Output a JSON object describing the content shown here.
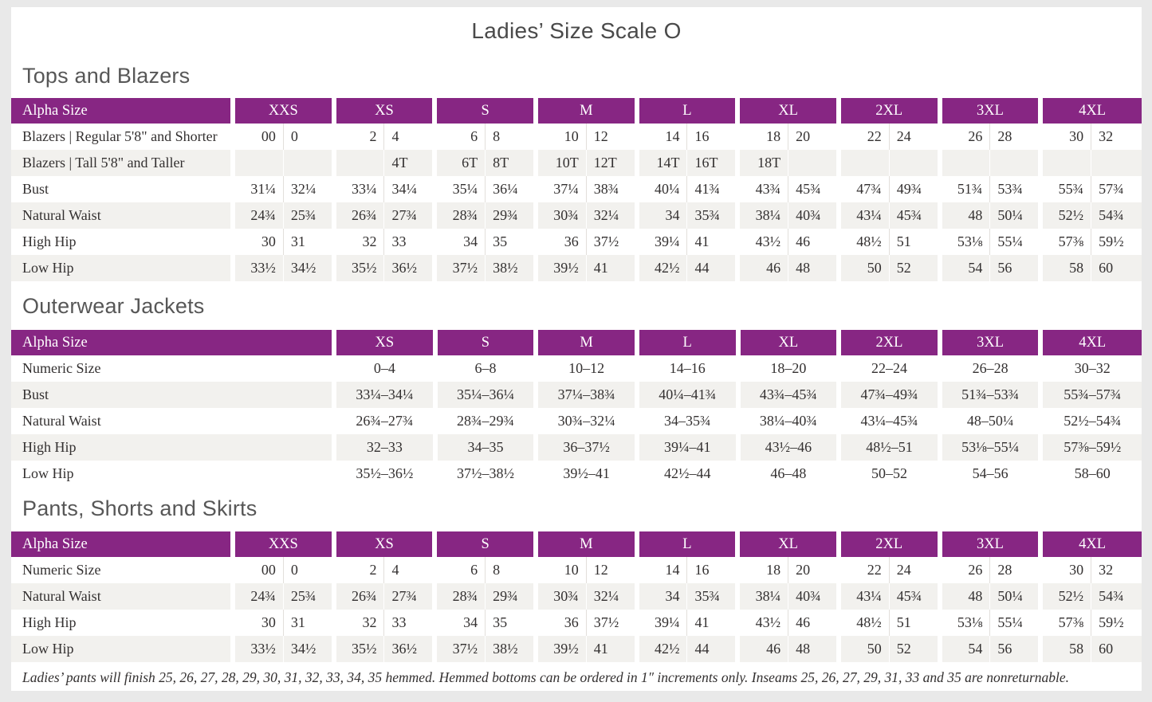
{
  "page_title": "Ladies’ Size Scale O",
  "footnote": "Ladies’ pants will finish 25, 26, 27, 28, 29, 30, 31, 32, 33, 34, 35 hemmed. Hemmed bottoms can be ordered in 1″ increments only. Inseams 25, 26, 27, 29, 31, 33 and 35 are nonreturnable.",
  "colors": {
    "header_bg": "#872683",
    "header_text": "#ffffff",
    "row_alt_bg": "#f2f1ee",
    "body_text": "#333030",
    "heading_text": "#575757",
    "page_bg": "#ffffff",
    "frame_bg": "#e9e9e9"
  },
  "sections": [
    {
      "title": "Tops and Blazers",
      "layout": "paired",
      "col_header_label": "Alpha Size",
      "col_groups": [
        "XXS",
        "XS",
        "S",
        "M",
        "L",
        "XL",
        "2XL",
        "3XL",
        "4XL"
      ],
      "rows": [
        {
          "label": "Blazers | Regular 5'8\" and Shorter",
          "pairs": [
            [
              "00",
              "0"
            ],
            [
              "2",
              "4"
            ],
            [
              "6",
              "8"
            ],
            [
              "10",
              "12"
            ],
            [
              "14",
              "16"
            ],
            [
              "18",
              "20"
            ],
            [
              "22",
              "24"
            ],
            [
              "26",
              "28"
            ],
            [
              "30",
              "32"
            ]
          ]
        },
        {
          "label": "Blazers | Tall 5'8\" and Taller",
          "pairs": [
            [
              "",
              ""
            ],
            [
              "",
              "4T"
            ],
            [
              "6T",
              "8T"
            ],
            [
              "10T",
              "12T"
            ],
            [
              "14T",
              "16T"
            ],
            [
              "18T",
              ""
            ],
            [
              "",
              ""
            ],
            [
              "",
              ""
            ],
            [
              "",
              ""
            ]
          ]
        },
        {
          "label": "Bust",
          "pairs": [
            [
              "31¼",
              "32¼"
            ],
            [
              "33¼",
              "34¼"
            ],
            [
              "35¼",
              "36¼"
            ],
            [
              "37¼",
              "38¾"
            ],
            [
              "40¼",
              "41¾"
            ],
            [
              "43¾",
              "45¾"
            ],
            [
              "47¾",
              "49¾"
            ],
            [
              "51¾",
              "53¾"
            ],
            [
              "55¾",
              "57¾"
            ]
          ]
        },
        {
          "label": "Natural Waist",
          "pairs": [
            [
              "24¾",
              "25¾"
            ],
            [
              "26¾",
              "27¾"
            ],
            [
              "28¾",
              "29¾"
            ],
            [
              "30¾",
              "32¼"
            ],
            [
              "34",
              "35¾"
            ],
            [
              "38¼",
              "40¾"
            ],
            [
              "43¼",
              "45¾"
            ],
            [
              "48",
              "50¼"
            ],
            [
              "52½",
              "54¾"
            ]
          ]
        },
        {
          "label": "High Hip",
          "pairs": [
            [
              "30",
              "31"
            ],
            [
              "32",
              "33"
            ],
            [
              "34",
              "35"
            ],
            [
              "36",
              "37½"
            ],
            [
              "39¼",
              "41"
            ],
            [
              "43½",
              "46"
            ],
            [
              "48½",
              "51"
            ],
            [
              "53⅛",
              "55¼"
            ],
            [
              "57⅜",
              "59½"
            ]
          ]
        },
        {
          "label": "Low Hip",
          "pairs": [
            [
              "33½",
              "34½"
            ],
            [
              "35½",
              "36½"
            ],
            [
              "37½",
              "38½"
            ],
            [
              "39½",
              "41"
            ],
            [
              "42½",
              "44"
            ],
            [
              "46",
              "48"
            ],
            [
              "50",
              "52"
            ],
            [
              "54",
              "56"
            ],
            [
              "58",
              "60"
            ]
          ]
        }
      ]
    },
    {
      "title": "Outerwear Jackets",
      "layout": "single",
      "col_header_label": "Alpha Size",
      "col_groups": [
        "XS",
        "S",
        "M",
        "L",
        "XL",
        "2XL",
        "3XL",
        "4XL"
      ],
      "rows": [
        {
          "label": "Numeric Size",
          "values": [
            "0–4",
            "6–8",
            "10–12",
            "14–16",
            "18–20",
            "22–24",
            "26–28",
            "30–32"
          ]
        },
        {
          "label": "Bust",
          "values": [
            "33¼–34¼",
            "35¼–36¼",
            "37¼–38¾",
            "40¼–41¾",
            "43¾–45¾",
            "47¾–49¾",
            "51¾–53¾",
            "55¾–57¾"
          ]
        },
        {
          "label": "Natural Waist",
          "values": [
            "26¾–27¾",
            "28¾–29¾",
            "30¾–32¼",
            "34–35¾",
            "38¼–40¾",
            "43¼–45¾",
            "48–50¼",
            "52½–54¾"
          ]
        },
        {
          "label": "High Hip",
          "values": [
            "32–33",
            "34–35",
            "36–37½",
            "39¼–41",
            "43½–46",
            "48½–51",
            "53⅛–55¼",
            "57⅜–59½"
          ]
        },
        {
          "label": "Low Hip",
          "values": [
            "35½–36½",
            "37½–38½",
            "39½–41",
            "42½–44",
            "46–48",
            "50–52",
            "54–56",
            "58–60"
          ]
        }
      ]
    },
    {
      "title": "Pants, Shorts and Skirts",
      "layout": "paired",
      "col_header_label": "Alpha Size",
      "col_groups": [
        "XXS",
        "XS",
        "S",
        "M",
        "L",
        "XL",
        "2XL",
        "3XL",
        "4XL"
      ],
      "rows": [
        {
          "label": "Numeric Size",
          "pairs": [
            [
              "00",
              "0"
            ],
            [
              "2",
              "4"
            ],
            [
              "6",
              "8"
            ],
            [
              "10",
              "12"
            ],
            [
              "14",
              "16"
            ],
            [
              "18",
              "20"
            ],
            [
              "22",
              "24"
            ],
            [
              "26",
              "28"
            ],
            [
              "30",
              "32"
            ]
          ]
        },
        {
          "label": "Natural Waist",
          "pairs": [
            [
              "24¾",
              "25¾"
            ],
            [
              "26¾",
              "27¾"
            ],
            [
              "28¾",
              "29¾"
            ],
            [
              "30¾",
              "32¼"
            ],
            [
              "34",
              "35¾"
            ],
            [
              "38¼",
              "40¾"
            ],
            [
              "43¼",
              "45¾"
            ],
            [
              "48",
              "50¼"
            ],
            [
              "52½",
              "54¾"
            ]
          ]
        },
        {
          "label": "High Hip",
          "pairs": [
            [
              "30",
              "31"
            ],
            [
              "32",
              "33"
            ],
            [
              "34",
              "35"
            ],
            [
              "36",
              "37½"
            ],
            [
              "39¼",
              "41"
            ],
            [
              "43½",
              "46"
            ],
            [
              "48½",
              "51"
            ],
            [
              "53⅛",
              "55¼"
            ],
            [
              "57⅜",
              "59½"
            ]
          ]
        },
        {
          "label": "Low Hip",
          "pairs": [
            [
              "33½",
              "34½"
            ],
            [
              "35½",
              "36½"
            ],
            [
              "37½",
              "38½"
            ],
            [
              "39½",
              "41"
            ],
            [
              "42½",
              "44"
            ],
            [
              "46",
              "48"
            ],
            [
              "50",
              "52"
            ],
            [
              "54",
              "56"
            ],
            [
              "58",
              "60"
            ]
          ]
        }
      ]
    }
  ]
}
